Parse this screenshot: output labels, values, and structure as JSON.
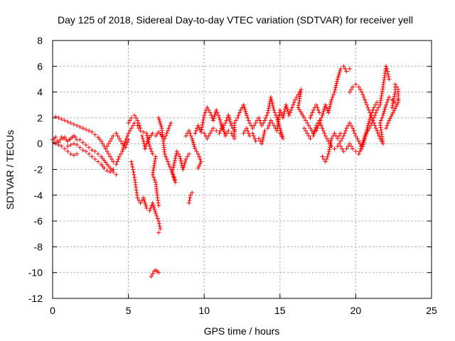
{
  "chart_data": {
    "type": "scatter",
    "title": "Day 125 of 2018, Sidereal Day-to-day VTEC variation (SDTVAR) for receiver yell",
    "xlabel": "GPS time / hours",
    "ylabel": "SDTVAR / TECUs",
    "xlim": [
      0,
      25
    ],
    "ylim": [
      -12,
      8
    ],
    "xticks": [
      "0",
      "5",
      "10",
      "15",
      "20",
      "25"
    ],
    "yticks": [
      "-12",
      "-10",
      "-8",
      "-6",
      "-4",
      "-2",
      "0",
      "2",
      "4",
      "6",
      "8"
    ],
    "grid": true,
    "marker": "+",
    "series_color": "#ff0000",
    "series": [
      {
        "name": "SDTVAR",
        "points": [
          [
            0.0,
            0.3
          ],
          [
            0.1,
            0.4
          ],
          [
            0.2,
            0.5
          ],
          [
            0.3,
            0.2
          ],
          [
            0.4,
            0.1
          ],
          [
            0.5,
            0.3
          ],
          [
            0.6,
            0.5
          ],
          [
            0.7,
            0.4
          ],
          [
            0.8,
            0.5
          ],
          [
            0.9,
            0.3
          ],
          [
            1.0,
            0.2
          ],
          [
            1.1,
            0.3
          ],
          [
            1.2,
            0.4
          ],
          [
            1.3,
            0.5
          ],
          [
            1.4,
            0.6
          ],
          [
            1.5,
            0.5
          ],
          [
            1.6,
            0.3
          ],
          [
            0.1,
            0.1
          ],
          [
            0.2,
            0.0
          ],
          [
            0.4,
            -0.1
          ],
          [
            0.6,
            -0.2
          ],
          [
            0.8,
            -0.4
          ],
          [
            1.0,
            -0.6
          ],
          [
            1.2,
            -0.8
          ],
          [
            1.4,
            -0.9
          ],
          [
            1.6,
            -0.8
          ],
          [
            0.2,
            2.1
          ],
          [
            0.4,
            2.0
          ],
          [
            0.6,
            1.9
          ],
          [
            0.8,
            1.8
          ],
          [
            1.0,
            1.7
          ],
          [
            1.2,
            1.6
          ],
          [
            1.4,
            1.5
          ],
          [
            1.6,
            1.4
          ],
          [
            1.8,
            1.3
          ],
          [
            2.0,
            1.2
          ],
          [
            2.2,
            1.1
          ],
          [
            2.4,
            1.0
          ],
          [
            2.6,
            0.9
          ],
          [
            2.8,
            0.7
          ],
          [
            3.0,
            0.5
          ],
          [
            3.2,
            0.2
          ],
          [
            3.4,
            -0.2
          ],
          [
            3.6,
            -0.6
          ],
          [
            3.8,
            -1.0
          ],
          [
            4.0,
            -1.4
          ],
          [
            1.0,
            -0.2
          ],
          [
            1.2,
            -0.1
          ],
          [
            1.4,
            0.0
          ],
          [
            1.6,
            -0.1
          ],
          [
            1.8,
            -0.3
          ],
          [
            2.0,
            -0.5
          ],
          [
            2.2,
            -0.6
          ],
          [
            2.4,
            -0.8
          ],
          [
            2.6,
            -1.0
          ],
          [
            2.8,
            -1.2
          ],
          [
            3.0,
            -1.4
          ],
          [
            3.2,
            -1.6
          ],
          [
            3.4,
            -1.9
          ],
          [
            3.6,
            -2.1
          ],
          [
            3.8,
            -2.2
          ],
          [
            4.0,
            -2.0
          ],
          [
            1.8,
            0.3
          ],
          [
            2.0,
            0.1
          ],
          [
            2.2,
            -0.1
          ],
          [
            2.4,
            -0.3
          ],
          [
            2.6,
            -0.5
          ],
          [
            2.8,
            -0.6
          ],
          [
            3.0,
            -0.8
          ],
          [
            3.2,
            -1.0
          ],
          [
            3.4,
            -1.3
          ],
          [
            3.6,
            -1.6
          ],
          [
            3.8,
            -1.9
          ],
          [
            4.0,
            -2.2
          ],
          [
            4.2,
            -2.4
          ],
          [
            3.6,
            -0.2
          ],
          [
            3.8,
            0.2
          ],
          [
            4.0,
            0.6
          ],
          [
            4.2,
            0.8
          ],
          [
            4.4,
            0.4
          ],
          [
            4.6,
            0.0
          ],
          [
            4.8,
            -0.3
          ],
          [
            5.0,
            0.3
          ],
          [
            4.2,
            -1.6
          ],
          [
            4.4,
            -1.0
          ],
          [
            4.6,
            -0.6
          ],
          [
            4.8,
            0.2
          ],
          [
            5.0,
            0.8
          ],
          [
            5.2,
            1.2
          ],
          [
            5.4,
            1.6
          ],
          [
            5.6,
            1.4
          ],
          [
            5.8,
            1.0
          ],
          [
            6.0,
            0.9
          ],
          [
            5.0,
            1.6
          ],
          [
            5.2,
            2.0
          ],
          [
            5.4,
            2.2
          ],
          [
            5.6,
            1.8
          ],
          [
            5.8,
            1.2
          ],
          [
            5.2,
            -1.4
          ],
          [
            5.3,
            -2.0
          ],
          [
            5.4,
            -2.6
          ],
          [
            5.5,
            -3.4
          ],
          [
            5.6,
            -4.2
          ],
          [
            5.8,
            -4.6
          ],
          [
            6.0,
            -4.2
          ],
          [
            6.2,
            -5.0
          ],
          [
            6.4,
            -5.2
          ],
          [
            6.6,
            -4.6
          ],
          [
            6.8,
            -5.4
          ],
          [
            7.0,
            -6.0
          ],
          [
            7.1,
            -6.6
          ],
          [
            7.0,
            -6.9
          ],
          [
            5.9,
            0.6
          ],
          [
            6.0,
            0.2
          ],
          [
            6.1,
            -0.4
          ],
          [
            6.2,
            0.0
          ],
          [
            6.4,
            0.5
          ],
          [
            6.6,
            0.8
          ],
          [
            6.8,
            0.6
          ],
          [
            7.0,
            0.9
          ],
          [
            7.2,
            0.6
          ],
          [
            7.4,
            0.4
          ],
          [
            7.6,
            1.0
          ],
          [
            7.8,
            1.6
          ],
          [
            6.2,
            0.8
          ],
          [
            6.4,
            -0.2
          ],
          [
            6.6,
            -0.8
          ],
          [
            6.8,
            -1.0
          ],
          [
            6.6,
            -2.4
          ],
          [
            6.8,
            -3.0
          ],
          [
            6.9,
            -4.0
          ],
          [
            7.0,
            -4.8
          ],
          [
            7.0,
            2.0
          ],
          [
            7.2,
            1.2
          ],
          [
            7.4,
            -0.8
          ],
          [
            7.6,
            -1.4
          ],
          [
            7.8,
            -2.0
          ],
          [
            8.0,
            -2.6
          ],
          [
            8.1,
            -3.0
          ],
          [
            7.9,
            -2.2
          ],
          [
            8.2,
            -0.6
          ],
          [
            8.4,
            -1.0
          ],
          [
            8.6,
            -2.0
          ],
          [
            8.8,
            -1.2
          ],
          [
            9.0,
            -0.8
          ],
          [
            9.2,
            -3.8
          ],
          [
            9.1,
            -4.0
          ],
          [
            9.0,
            -4.6
          ],
          [
            6.5,
            -10.3
          ],
          [
            6.6,
            -10.1
          ],
          [
            6.7,
            -9.9
          ],
          [
            6.8,
            -9.8
          ],
          [
            6.9,
            -9.9
          ],
          [
            7.0,
            -10.0
          ],
          [
            8.8,
            0.6
          ],
          [
            9.0,
            1.0
          ],
          [
            9.2,
            0.4
          ],
          [
            9.4,
            -0.4
          ],
          [
            9.6,
            -0.8
          ],
          [
            9.8,
            -1.4
          ],
          [
            9.6,
            -1.9
          ],
          [
            9.4,
            0.8
          ],
          [
            9.6,
            1.4
          ],
          [
            9.8,
            0.9
          ],
          [
            10.0,
            2.2
          ],
          [
            10.2,
            2.8
          ],
          [
            10.4,
            2.4
          ],
          [
            10.6,
            1.8
          ],
          [
            10.8,
            2.6
          ],
          [
            11.0,
            2.0
          ],
          [
            11.2,
            1.2
          ],
          [
            11.4,
            1.6
          ],
          [
            11.6,
            2.2
          ],
          [
            11.8,
            1.4
          ],
          [
            12.0,
            1.0
          ],
          [
            10.0,
            0.8
          ],
          [
            10.2,
            0.4
          ],
          [
            10.4,
            0.8
          ],
          [
            10.6,
            1.2
          ],
          [
            10.8,
            1.0
          ],
          [
            11.0,
            0.8
          ],
          [
            11.2,
            1.4
          ],
          [
            11.4,
            0.6
          ],
          [
            11.6,
            1.0
          ],
          [
            11.8,
            0.8
          ],
          [
            12.0,
            0.4
          ],
          [
            12.0,
            1.6
          ],
          [
            12.2,
            2.0
          ],
          [
            12.4,
            2.6
          ],
          [
            12.6,
            3.0
          ],
          [
            12.8,
            2.2
          ],
          [
            13.0,
            1.6
          ],
          [
            13.2,
            1.2
          ],
          [
            13.4,
            1.6
          ],
          [
            13.6,
            2.0
          ],
          [
            13.8,
            1.4
          ],
          [
            14.0,
            1.8
          ],
          [
            14.2,
            2.4
          ],
          [
            14.4,
            3.6
          ],
          [
            14.6,
            2.6
          ],
          [
            14.8,
            2.0
          ],
          [
            15.0,
            1.2
          ],
          [
            15.2,
            0.4
          ],
          [
            15.0,
            0.8
          ],
          [
            12.6,
            0.8
          ],
          [
            12.8,
            1.2
          ],
          [
            13.0,
            0.6
          ],
          [
            13.2,
            0.8
          ],
          [
            13.4,
            0.2
          ],
          [
            13.6,
            0.4
          ],
          [
            13.8,
            0.0
          ],
          [
            14.0,
            1.0
          ],
          [
            14.2,
            1.2
          ],
          [
            14.4,
            1.8
          ],
          [
            14.6,
            1.4
          ],
          [
            14.8,
            1.0
          ],
          [
            15.0,
            2.6
          ],
          [
            15.2,
            2.0
          ],
          [
            15.4,
            3.0
          ],
          [
            15.6,
            2.2
          ],
          [
            15.8,
            2.8
          ],
          [
            16.0,
            3.4
          ],
          [
            16.2,
            3.8
          ],
          [
            16.4,
            4.2
          ],
          [
            16.2,
            2.8
          ],
          [
            16.6,
            2.0
          ],
          [
            16.8,
            1.6
          ],
          [
            17.0,
            1.2
          ],
          [
            17.2,
            0.8
          ],
          [
            17.4,
            1.0
          ],
          [
            17.6,
            1.6
          ],
          [
            17.8,
            2.2
          ],
          [
            18.0,
            3.0
          ],
          [
            18.2,
            2.4
          ],
          [
            18.4,
            3.4
          ],
          [
            18.6,
            4.0
          ],
          [
            18.8,
            5.0
          ],
          [
            19.0,
            5.8
          ],
          [
            19.2,
            6.0
          ],
          [
            19.4,
            5.6
          ],
          [
            19.6,
            5.8
          ],
          [
            16.6,
            1.2
          ],
          [
            16.8,
            0.8
          ],
          [
            17.0,
            0.4
          ],
          [
            17.2,
            0.6
          ],
          [
            17.4,
            1.4
          ],
          [
            17.6,
            1.8
          ],
          [
            17.8,
            1.2
          ],
          [
            18.0,
            0.6
          ],
          [
            18.2,
            0.2
          ],
          [
            18.4,
            -0.2
          ],
          [
            18.6,
            -0.4
          ],
          [
            18.8,
            -0.2
          ],
          [
            19.0,
            0.2
          ],
          [
            19.2,
            0.6
          ],
          [
            19.4,
            1.2
          ],
          [
            19.6,
            1.6
          ],
          [
            19.8,
            1.2
          ],
          [
            20.0,
            0.6
          ],
          [
            20.2,
            0.2
          ],
          [
            20.4,
            -0.4
          ],
          [
            20.6,
            0.4
          ],
          [
            20.8,
            1.4
          ],
          [
            21.0,
            2.2
          ],
          [
            21.2,
            2.8
          ],
          [
            21.4,
            3.2
          ],
          [
            17.0,
            2.0
          ],
          [
            17.2,
            2.6
          ],
          [
            17.4,
            3.0
          ],
          [
            17.6,
            2.4
          ],
          [
            17.8,
            -1.0
          ],
          [
            18.0,
            -1.4
          ],
          [
            18.2,
            -0.8
          ],
          [
            18.4,
            0.4
          ],
          [
            18.6,
            0.8
          ],
          [
            18.8,
            0.4
          ],
          [
            19.0,
            0.8
          ],
          [
            19.6,
            4.0
          ],
          [
            19.8,
            4.4
          ],
          [
            20.0,
            4.6
          ],
          [
            20.2,
            4.4
          ],
          [
            20.4,
            4.0
          ],
          [
            20.6,
            3.4
          ],
          [
            20.8,
            2.8
          ],
          [
            21.0,
            2.2
          ],
          [
            21.2,
            1.6
          ],
          [
            21.4,
            1.0
          ],
          [
            21.6,
            0.4
          ],
          [
            21.8,
            0.0
          ],
          [
            21.6,
            1.6
          ],
          [
            21.8,
            2.2
          ],
          [
            22.0,
            3.0
          ],
          [
            22.2,
            3.6
          ],
          [
            22.4,
            3.4
          ],
          [
            22.6,
            3.2
          ],
          [
            22.8,
            3.4
          ],
          [
            19.0,
            -0.2
          ],
          [
            19.2,
            -0.6
          ],
          [
            19.4,
            -0.4
          ],
          [
            19.6,
            0.0
          ],
          [
            19.8,
            -0.4
          ],
          [
            20.0,
            -0.6
          ],
          [
            20.2,
            -0.8
          ],
          [
            20.4,
            -0.2
          ],
          [
            20.6,
            0.6
          ],
          [
            20.8,
            1.0
          ],
          [
            21.0,
            1.4
          ],
          [
            21.2,
            2.0
          ],
          [
            21.4,
            2.6
          ],
          [
            21.6,
            3.0
          ],
          [
            21.8,
            4.4
          ],
          [
            22.0,
            6.0
          ],
          [
            22.1,
            5.6
          ],
          [
            22.2,
            5.0
          ],
          [
            22.4,
            2.8
          ],
          [
            22.6,
            4.0
          ],
          [
            22.6,
            4.6
          ],
          [
            22.8,
            4.2
          ],
          [
            22.8,
            3.2
          ],
          [
            22.2,
            1.8
          ],
          [
            22.0,
            1.2
          ]
        ]
      }
    ]
  }
}
